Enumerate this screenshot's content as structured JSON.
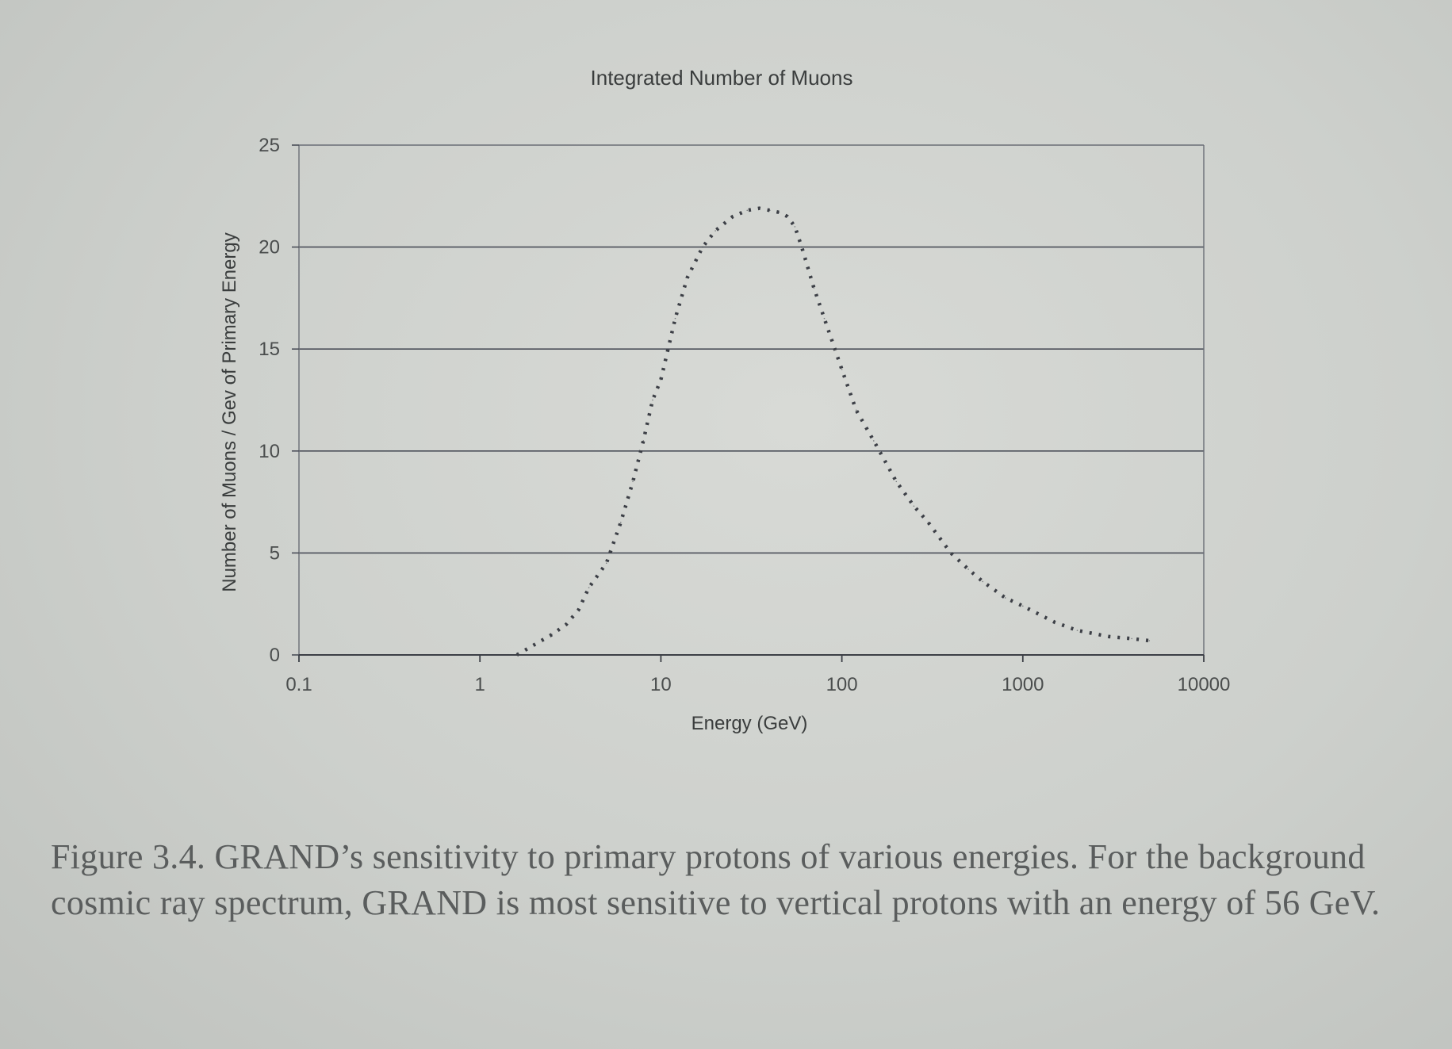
{
  "chart_data": {
    "type": "line",
    "title": "Integrated Number of Muons",
    "xlabel": "Energy (GeV)",
    "ylabel": "Number of Muons / Gev of Primary Energy",
    "xscale": "log",
    "xlim": [
      0.1,
      10000
    ],
    "ylim": [
      0,
      25
    ],
    "xticks": [
      {
        "value": 0.1,
        "label": "0.1"
      },
      {
        "value": 1,
        "label": "1"
      },
      {
        "value": 10,
        "label": "10"
      },
      {
        "value": 100,
        "label": "100"
      },
      {
        "value": 1000,
        "label": "1000"
      },
      {
        "value": 10000,
        "label": "10000"
      }
    ],
    "yticks": [
      {
        "value": 0,
        "label": "0"
      },
      {
        "value": 5,
        "label": "5"
      },
      {
        "value": 10,
        "label": "10"
      },
      {
        "value": 15,
        "label": "15"
      },
      {
        "value": 20,
        "label": "20"
      },
      {
        "value": 25,
        "label": "25"
      }
    ],
    "grid": "horizontal",
    "legend": "none",
    "line_style": "dotted",
    "line_color": "#3c3f46",
    "series": [
      {
        "x": [
          1.6,
          2.0,
          2.5,
          3.0,
          3.5,
          4.0,
          5.0,
          6.0,
          7.0,
          8.0,
          9.0,
          10,
          12,
          14,
          17,
          20,
          25,
          30,
          35,
          40,
          45,
          50,
          55,
          60,
          70,
          80,
          100,
          120,
          150,
          200,
          250,
          300,
          400,
          500,
          600,
          800,
          1000,
          1500,
          2000,
          3000,
          4000,
          5000
        ],
        "y": [
          0,
          0.5,
          1.0,
          1.5,
          2.2,
          3.3,
          4.5,
          6.5,
          8.5,
          10.5,
          12.5,
          13.5,
          16.5,
          18.5,
          20.0,
          20.8,
          21.5,
          21.8,
          21.9,
          21.8,
          21.7,
          21.5,
          21.0,
          20.0,
          18.0,
          16.5,
          14.0,
          12.0,
          10.5,
          8.5,
          7.3,
          6.5,
          5.0,
          4.2,
          3.6,
          2.8,
          2.4,
          1.6,
          1.2,
          0.9,
          0.8,
          0.7
        ]
      }
    ]
  },
  "caption": "Figure 3.4. GRAND’s sensitivity to primary protons of various energies. For the background cosmic ray spectrum, GRAND is most sensitive to vertical protons with an energy of 56 GeV."
}
